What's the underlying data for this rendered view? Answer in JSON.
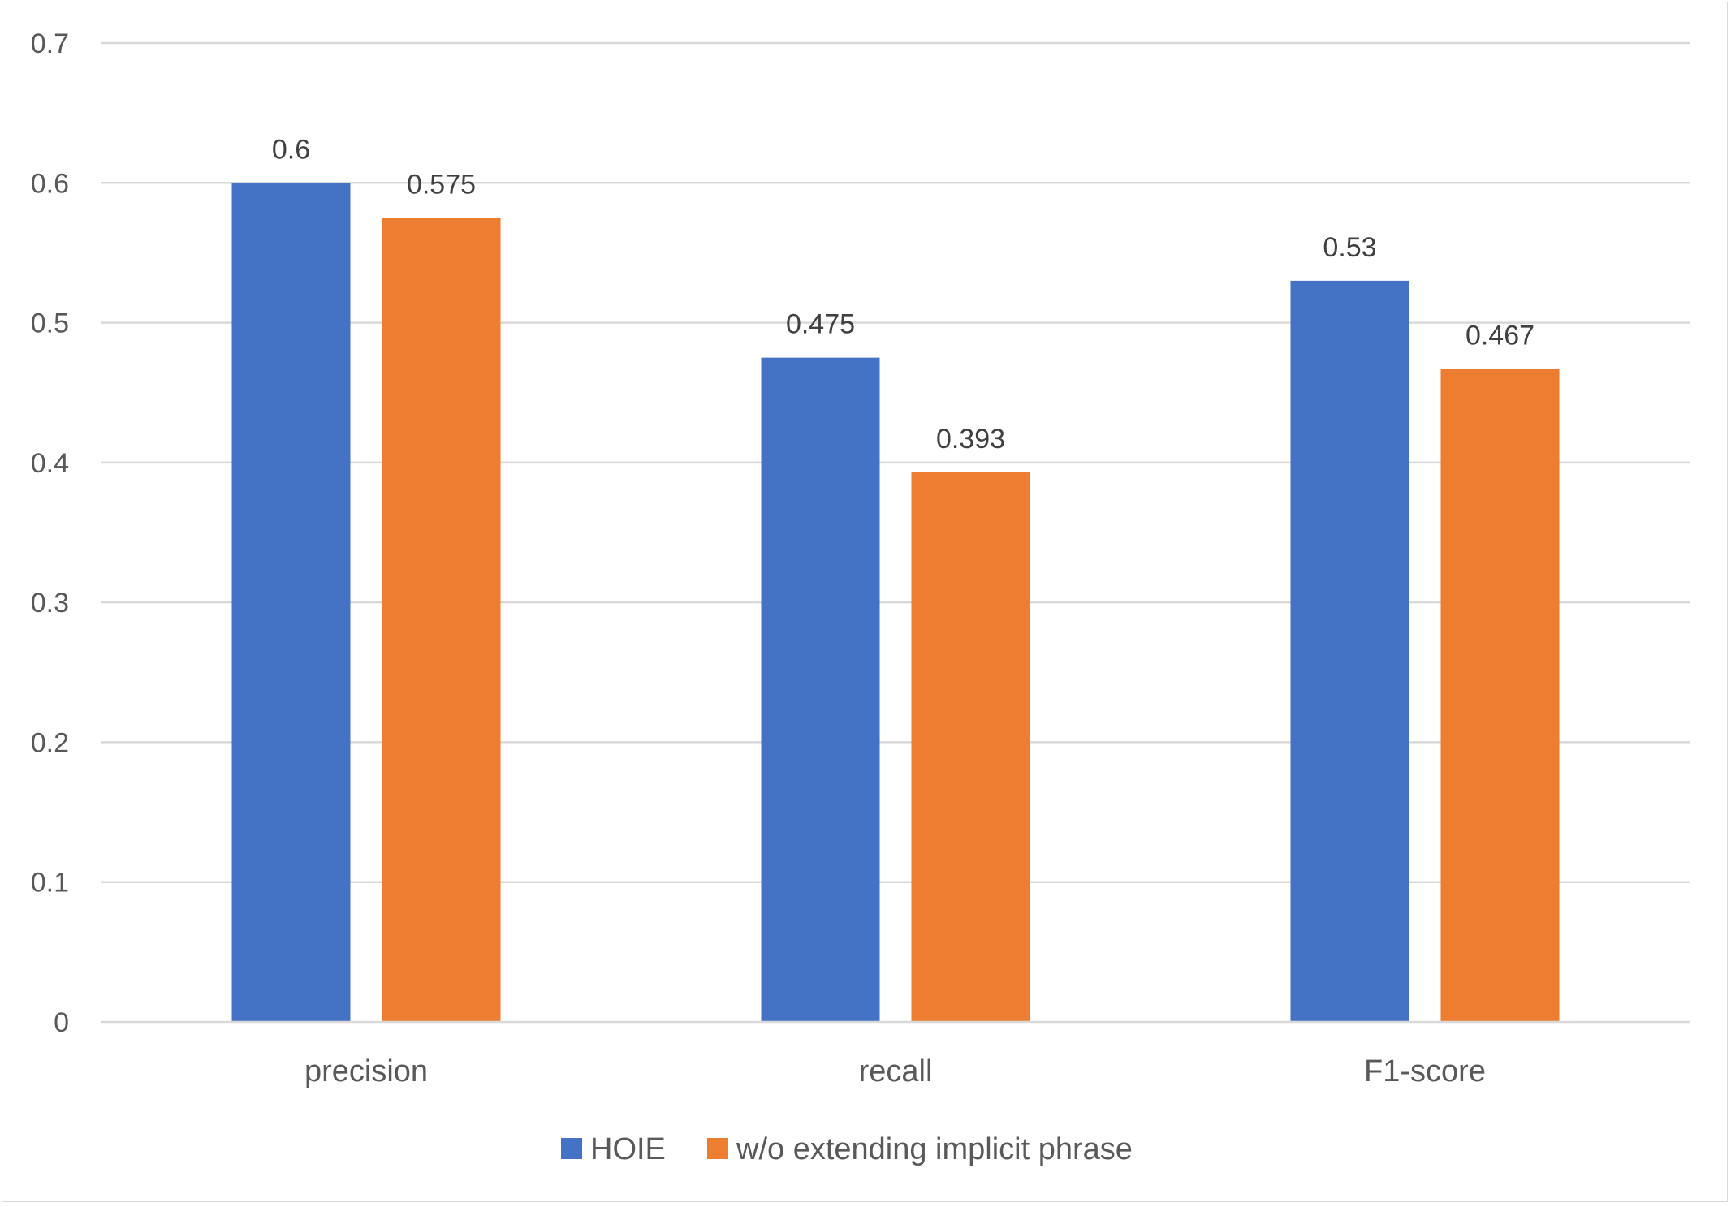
{
  "chart_data": {
    "type": "bar",
    "title": "",
    "xlabel": "",
    "ylabel": "",
    "categories": [
      "precision",
      "recall",
      "F1-score"
    ],
    "series": [
      {
        "name": "HOIE",
        "values": [
          0.6,
          0.475,
          0.53
        ],
        "labels": [
          "0.6",
          "0.475",
          "0.53"
        ],
        "color": "#4472C4"
      },
      {
        "name": "w/o extending implicit phrase",
        "values": [
          0.575,
          0.393,
          0.467
        ],
        "labels": [
          "0.575",
          "0.393",
          "0.467"
        ],
        "color": "#ED7D31"
      }
    ],
    "ylim": [
      0,
      0.7
    ],
    "yticks": [
      0,
      0.1,
      0.2,
      0.3,
      0.4,
      0.5,
      0.6,
      0.7
    ],
    "ytick_labels": [
      "0",
      "0.1",
      "0.2",
      "0.3",
      "0.4",
      "0.5",
      "0.6",
      "0.7"
    ],
    "grid": true,
    "legend_position": "bottom"
  }
}
